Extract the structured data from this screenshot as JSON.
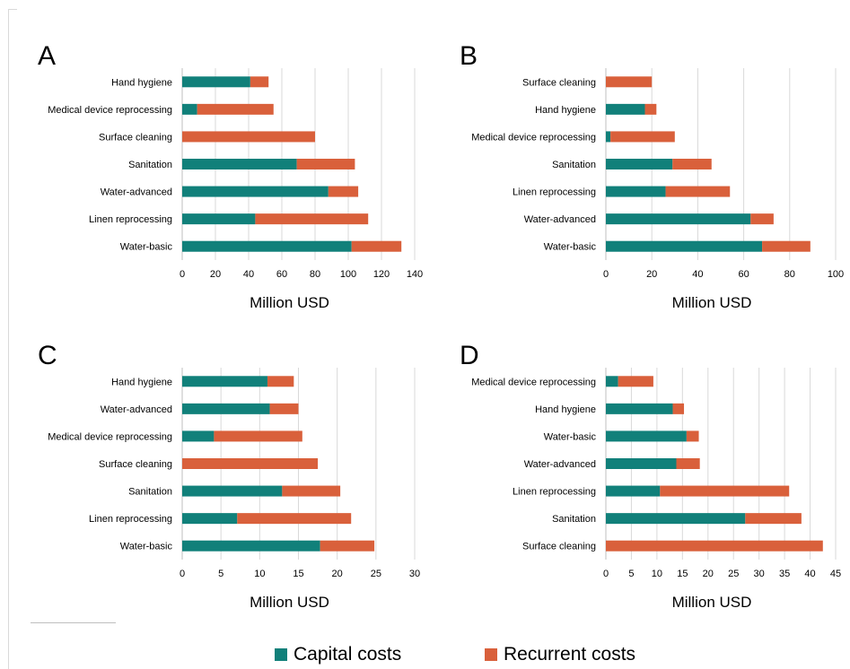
{
  "colors": {
    "capital": "#11807a",
    "recurrent": "#d9603b",
    "grid": "#d9d9d9",
    "axis": "#bfbfbf"
  },
  "legend": {
    "capital_label": "Capital costs",
    "recurrent_label": "Recurrent costs"
  },
  "chart_data": [
    {
      "type": "bar",
      "stacked": true,
      "orientation": "horizontal",
      "panel_label": "A",
      "xlabel": "Million USD",
      "xlim": [
        0,
        140
      ],
      "xticks": [
        0,
        20,
        40,
        60,
        80,
        100,
        120,
        140
      ],
      "categories": [
        "Hand hygiene",
        "Medical device reprocessing",
        "Surface cleaning",
        "Sanitation",
        "Water-advanced",
        "Linen reprocessing",
        "Water-basic"
      ],
      "series": [
        {
          "name": "Capital costs",
          "values": [
            41,
            9,
            0,
            69,
            88,
            44,
            102
          ]
        },
        {
          "name": "Recurrent costs",
          "values": [
            11,
            46,
            80,
            35,
            18,
            68,
            30
          ]
        }
      ]
    },
    {
      "type": "bar",
      "stacked": true,
      "orientation": "horizontal",
      "panel_label": "B",
      "xlabel": "Million USD",
      "xlim": [
        0,
        100
      ],
      "xticks": [
        0,
        20,
        40,
        60,
        80,
        100
      ],
      "categories": [
        "Surface cleaning",
        "Hand hygiene",
        "Medical device reprocessing",
        "Sanitation",
        "Linen reprocessing",
        "Water-advanced",
        "Water-basic"
      ],
      "series": [
        {
          "name": "Capital costs",
          "values": [
            0,
            17,
            2,
            29,
            26,
            63,
            68
          ]
        },
        {
          "name": "Recurrent costs",
          "values": [
            20,
            5,
            28,
            17,
            28,
            10,
            21
          ]
        }
      ]
    },
    {
      "type": "bar",
      "stacked": true,
      "orientation": "horizontal",
      "panel_label": "C",
      "xlabel": "Million USD",
      "xlim": [
        0,
        30
      ],
      "xticks": [
        0,
        5,
        10,
        15,
        20,
        25,
        30
      ],
      "categories": [
        "Hand hygiene",
        "Water-advanced",
        "Medical device reprocessing",
        "Surface cleaning",
        "Sanitation",
        "Linen reprocessing",
        "Water-basic"
      ],
      "series": [
        {
          "name": "Capital costs",
          "values": [
            11,
            11.3,
            4.1,
            0,
            12.9,
            7.1,
            17.8
          ]
        },
        {
          "name": "Recurrent costs",
          "values": [
            3.4,
            3.7,
            11.4,
            17.5,
            7.5,
            14.7,
            7.0
          ]
        }
      ]
    },
    {
      "type": "bar",
      "stacked": true,
      "orientation": "horizontal",
      "panel_label": "D",
      "xlabel": "Million USD",
      "xlim": [
        0,
        45
      ],
      "xticks": [
        0,
        5,
        10,
        15,
        20,
        25,
        30,
        35,
        40,
        45
      ],
      "categories": [
        "Medical device reprocessing",
        "Hand hygiene",
        "Water-basic",
        "Water-advanced",
        "Linen reprocessing",
        "Sanitation",
        "Surface cleaning"
      ],
      "series": [
        {
          "name": "Capital costs",
          "values": [
            2.4,
            13.1,
            15.8,
            13.8,
            10.6,
            27.3,
            0
          ]
        },
        {
          "name": "Recurrent costs",
          "values": [
            6.9,
            2.2,
            2.4,
            4.6,
            25.3,
            11.0,
            42.5
          ]
        }
      ]
    }
  ]
}
